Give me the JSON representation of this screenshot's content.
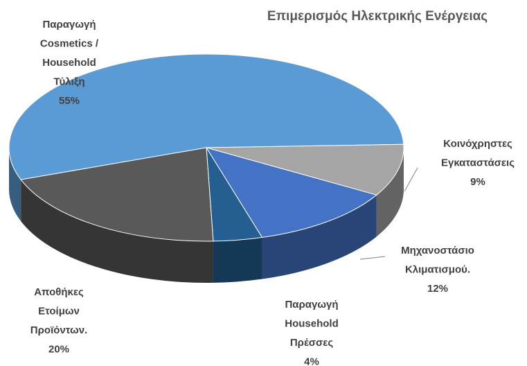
{
  "chart_data": {
    "type": "pie3d",
    "title": "Επιμερισμός Ηλεκτρικής Ενέργειας",
    "categories": [
      [
        "Παραγωγή",
        "Cosmetics /",
        "Household",
        "Τύλιξη"
      ],
      [
        "Κοινόχρηστες",
        "Εγκαταστάσεις"
      ],
      [
        "Μηχανοστάσιο",
        "Κλιματισμού."
      ],
      [
        "Παραγωγή",
        "Household",
        "Πρέσσες"
      ],
      [
        "Αποθήκες",
        "Ετοίμων",
        "Προϊόντων."
      ]
    ],
    "values": [
      55,
      9,
      12,
      4,
      20
    ],
    "value_labels": [
      "55%",
      "9%",
      "12%",
      "4%",
      "20%"
    ],
    "colors": [
      "#5b9bd5",
      "#a5a5a5",
      "#4472c4",
      "#255e91",
      "#595959"
    ]
  }
}
